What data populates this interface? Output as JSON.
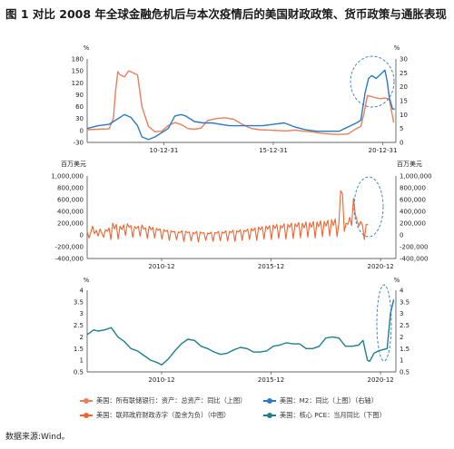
{
  "figure": {
    "title": "图 1   对比 2008 年全球金融危机后与本次疫情后的美国财政政策、货币政策与通胀表现",
    "source": "数据来源:Wind。"
  },
  "colors": {
    "orange": "#f0652f",
    "blue": "#2c79c2",
    "teal": "#1e7f8c",
    "pink_orange": "#e9805a",
    "annotation": "#2c79c2"
  },
  "legend": [
    {
      "label": "美国：所有联储银行：资产：总资产：同比（上图）",
      "color_key": "pink_orange"
    },
    {
      "label": "美国：M2：同比（上图）（右轴）",
      "color_key": "blue"
    },
    {
      "label": "美国：联邦政府财政赤字（盈余为负）（中图）",
      "color_key": "orange"
    },
    {
      "label": "美国：核心 PCE：当月同比（下图）",
      "color_key": "teal"
    }
  ],
  "chart_data": [
    {
      "type": "line",
      "left_unit": "%",
      "right_unit": "%",
      "left_ticks": [
        "180",
        "150",
        "120",
        "90",
        "60",
        "30",
        "0",
        "-30"
      ],
      "right_ticks": [
        "30",
        "25",
        "20",
        "15",
        "10",
        "5",
        "0"
      ],
      "x_ticks": [
        "10-12-31",
        "15-12-31",
        "20-12-31"
      ],
      "ylim_left": [
        -30,
        180
      ],
      "ylim_right": [
        0,
        30
      ],
      "xlim": [
        2007.5,
        2021.6
      ],
      "series": [
        {
          "name": "美国：所有联储银行：资产：总资产：同比（上图）",
          "axis": "left",
          "color_key": "pink_orange",
          "x": [
            2007.5,
            2008.0,
            2008.5,
            2008.7,
            2008.8,
            2008.9,
            2009.0,
            2009.2,
            2009.4,
            2009.6,
            2009.8,
            2010.0,
            2010.3,
            2010.6,
            2010.9,
            2011.2,
            2011.5,
            2011.8,
            2012.1,
            2012.4,
            2012.7,
            2013.0,
            2013.4,
            2013.8,
            2014.2,
            2014.6,
            2015.0,
            2015.4,
            2015.8,
            2016.2,
            2016.6,
            2017.0,
            2017.4,
            2017.8,
            2018.2,
            2018.6,
            2019.0,
            2019.4,
            2019.8,
            2020.0,
            2020.15,
            2020.3,
            2020.5,
            2020.7,
            2020.9,
            2021.1,
            2021.3,
            2021.5
          ],
          "y": [
            2,
            3,
            4,
            30,
            100,
            148,
            140,
            135,
            150,
            145,
            140,
            60,
            10,
            -3,
            -2,
            12,
            20,
            15,
            5,
            3,
            6,
            25,
            30,
            32,
            28,
            15,
            5,
            2,
            1,
            0,
            -1,
            1,
            -2,
            -4,
            -7,
            -9,
            -10,
            -9,
            5,
            10,
            45,
            88,
            85,
            82,
            80,
            82,
            78,
            20
          ]
        },
        {
          "name": "美国：M2：同比（上图）（右轴）",
          "axis": "right",
          "color_key": "blue",
          "x": [
            2007.5,
            2008.0,
            2008.5,
            2008.8,
            2009.0,
            2009.2,
            2009.5,
            2009.8,
            2010.0,
            2010.3,
            2010.6,
            2010.9,
            2011.2,
            2011.5,
            2011.8,
            2012.0,
            2012.4,
            2012.8,
            2013.2,
            2013.6,
            2014.0,
            2014.5,
            2015.0,
            2015.5,
            2016.0,
            2016.5,
            2017.0,
            2017.5,
            2018.0,
            2018.5,
            2019.0,
            2019.4,
            2019.8,
            2020.0,
            2020.2,
            2020.35,
            2020.5,
            2020.7,
            2020.9,
            2021.1,
            2021.2,
            2021.3,
            2021.45,
            2021.55
          ],
          "y": [
            5,
            6,
            6.5,
            8,
            9,
            10,
            9,
            6,
            2,
            1,
            2,
            3.5,
            5,
            9.5,
            10,
            9.5,
            7.5,
            7,
            7,
            6.5,
            6,
            6,
            6,
            6,
            6.5,
            7,
            5.5,
            4.5,
            4,
            4,
            4,
            5.5,
            7,
            8,
            18,
            23,
            24,
            23,
            24.5,
            26,
            22,
            16,
            12,
            12
          ]
        }
      ]
    },
    {
      "type": "line",
      "left_unit": "百万美元",
      "right_unit": "百万美元",
      "left_ticks": [
        "1,000,000",
        "800,000",
        "600,000",
        "400,000",
        "200,000",
        "0",
        "-200,000",
        "-400,000"
      ],
      "right_ticks": [
        "1,000,000",
        "800,000",
        "600,000",
        "400,000",
        "200,000",
        "0",
        "-200,000",
        "-400,000"
      ],
      "x_ticks": [
        "2010-12",
        "2015-12",
        "2020-12"
      ],
      "ylim": [
        -400000,
        1000000
      ],
      "xlim": [
        2007.5,
        2021.6
      ],
      "series": [
        {
          "name": "美国：联邦政府财政赤字（盈余为负）（中图）",
          "color_key": "orange",
          "x_start": 2007.5,
          "x_step": 0.0833,
          "values": [
            60000,
            -50000,
            40000,
            150000,
            20000,
            80000,
            -20000,
            100000,
            30000,
            -40000,
            90000,
            60000,
            120000,
            -80000,
            200000,
            100000,
            180000,
            -70000,
            150000,
            90000,
            170000,
            -10000,
            190000,
            130000,
            160000,
            -40000,
            140000,
            110000,
            150000,
            -20000,
            170000,
            100000,
            120000,
            -60000,
            150000,
            90000,
            130000,
            -50000,
            110000,
            80000,
            100000,
            -70000,
            90000,
            60000,
            80000,
            -90000,
            70000,
            50000,
            60000,
            -80000,
            50000,
            40000,
            70000,
            -110000,
            60000,
            40000,
            50000,
            -100000,
            40000,
            20000,
            60000,
            -120000,
            50000,
            30000,
            40000,
            -90000,
            30000,
            20000,
            50000,
            -110000,
            40000,
            30000,
            60000,
            -100000,
            50000,
            30000,
            70000,
            -100000,
            60000,
            40000,
            80000,
            -110000,
            70000,
            50000,
            90000,
            -90000,
            80000,
            60000,
            100000,
            -80000,
            110000,
            70000,
            120000,
            -90000,
            130000,
            90000,
            140000,
            -70000,
            150000,
            100000,
            160000,
            -80000,
            170000,
            110000,
            180000,
            -60000,
            160000,
            120000,
            190000,
            -70000,
            180000,
            130000,
            200000,
            -60000,
            190000,
            140000,
            210000,
            -50000,
            200000,
            120000,
            220000,
            -40000,
            210000,
            130000,
            230000,
            -50000,
            220000,
            140000,
            240000,
            -30000,
            230000,
            150000,
            250000,
            -20000,
            260000,
            160000,
            270000,
            -30000,
            200000,
            750000,
            700000,
            60000,
            200000,
            180000,
            300000,
            160000,
            620000,
            350000,
            240000,
            150000,
            230000,
            160000,
            -80000,
            180000,
            170000
          ]
        }
      ]
    },
    {
      "type": "line",
      "left_unit": "%",
      "right_unit": "%",
      "left_ticks": [
        "4",
        "3.5",
        "3",
        "2.5",
        "2",
        "1.5",
        "1",
        "0.5"
      ],
      "right_ticks": [
        "4",
        "3.5",
        "3",
        "2.5",
        "2",
        "1.5",
        "1",
        "0.5"
      ],
      "x_ticks": [
        "2010-12",
        "2015-12",
        "2020-12"
      ],
      "ylim": [
        0.5,
        4
      ],
      "xlim": [
        2007.5,
        2021.6
      ],
      "series": [
        {
          "name": "美国：核心 PCE：当月同比（下图）",
          "color_key": "teal",
          "x": [
            2007.5,
            2007.8,
            2008.0,
            2008.3,
            2008.6,
            2008.9,
            2009.2,
            2009.5,
            2009.8,
            2010.1,
            2010.4,
            2010.7,
            2010.9,
            2011.2,
            2011.5,
            2011.8,
            2012.1,
            2012.4,
            2012.7,
            2013.0,
            2013.3,
            2013.6,
            2013.9,
            2014.2,
            2014.5,
            2014.8,
            2015.1,
            2015.4,
            2015.7,
            2016.0,
            2016.3,
            2016.6,
            2016.9,
            2017.2,
            2017.5,
            2017.8,
            2018.1,
            2018.4,
            2018.7,
            2019.0,
            2019.3,
            2019.6,
            2019.9,
            2020.1,
            2020.3,
            2020.4,
            2020.6,
            2020.8,
            2021.0,
            2021.2,
            2021.35,
            2021.5
          ],
          "y": [
            2.1,
            2.3,
            2.25,
            2.3,
            2.4,
            2.0,
            1.8,
            1.5,
            1.4,
            1.2,
            1.0,
            0.9,
            0.8,
            1.05,
            1.4,
            1.7,
            1.9,
            1.85,
            1.6,
            1.5,
            1.35,
            1.25,
            1.3,
            1.45,
            1.55,
            1.5,
            1.35,
            1.35,
            1.4,
            1.6,
            1.65,
            1.75,
            1.7,
            1.7,
            1.5,
            1.5,
            1.6,
            1.95,
            2.0,
            1.95,
            1.6,
            1.6,
            1.65,
            1.85,
            1.0,
            0.95,
            1.3,
            1.4,
            1.45,
            1.5,
            3.0,
            3.6
          ]
        }
      ]
    }
  ]
}
